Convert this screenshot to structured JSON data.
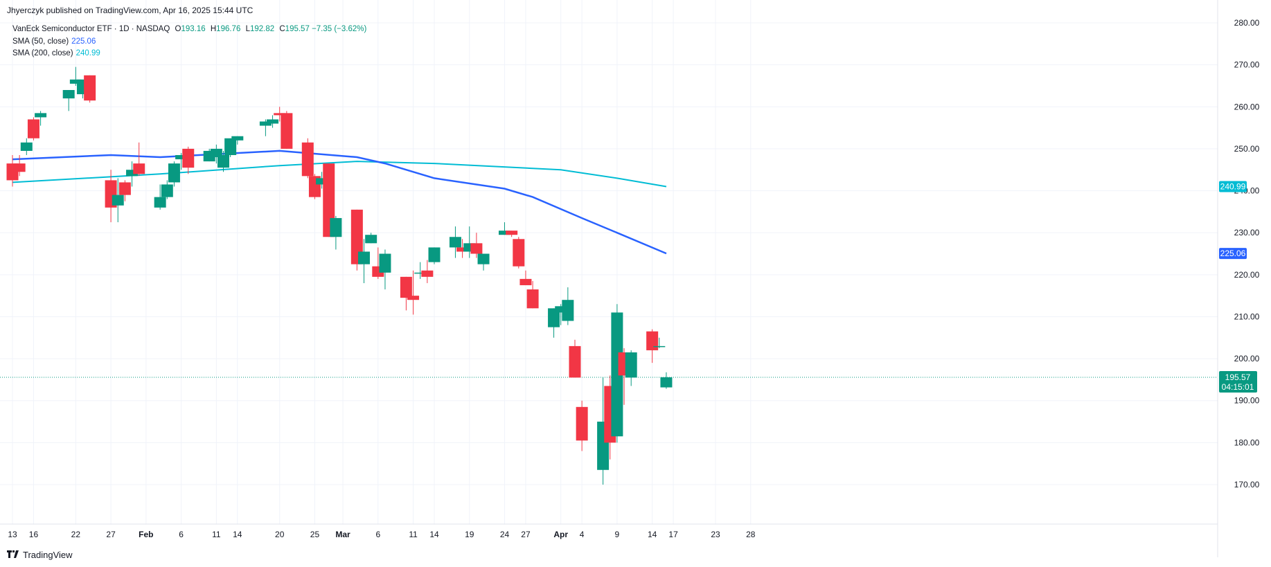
{
  "header": {
    "published": "Jhyerczyk published on TradingView.com, Apr 16, 2025 15:44 UTC"
  },
  "legend": {
    "instrument": "VanEck Semiconductor ETF · 1D · NASDAQ",
    "o_label": "O",
    "o_value": "193.16",
    "h_label": "H",
    "h_value": "196.76",
    "l_label": "L",
    "l_value": "192.82",
    "c_label": "C",
    "c_value": "195.57",
    "change": "−7.35 (−3.62%)",
    "sma50_label": "SMA (50, close)",
    "sma50_value": "225.06",
    "sma200_label": "SMA (200, close)",
    "sma200_value": "240.99"
  },
  "footer": {
    "brand": "TradingView"
  },
  "colors": {
    "up": "#089981",
    "down": "#F23645",
    "sma50": "#2962FF",
    "sma200": "#00BCD4",
    "grid": "#F0F3FA",
    "price_line": "#089981"
  },
  "chart_data": {
    "type": "candlestick",
    "yrange": [
      165,
      280
    ],
    "y_ticks": [
      170,
      180,
      190,
      200,
      210,
      220,
      230,
      240,
      250,
      260,
      270,
      280
    ],
    "x_tick_labels": [
      "13",
      "16",
      "22",
      "27",
      "Feb",
      "6",
      "11",
      "14",
      "20",
      "25",
      "Mar",
      "6",
      "11",
      "14",
      "19",
      "24",
      "27",
      "Apr",
      "4",
      "9",
      "14",
      "17",
      "23",
      "28"
    ],
    "candles": [
      [
        "2025-01-13",
        246.5,
        248.5,
        241.0,
        242.5
      ],
      [
        "2025-01-14",
        246.5,
        248.5,
        243.5,
        244.5
      ],
      [
        "2025-01-15",
        249.5,
        252.5,
        248.5,
        251.5
      ],
      [
        "2025-01-16",
        257.0,
        257.5,
        252.0,
        252.5
      ],
      [
        "2025-01-17",
        257.5,
        259.0,
        255.5,
        258.5
      ],
      [
        "2025-01-21",
        262.0,
        264.0,
        259.0,
        264.0
      ],
      [
        "2025-01-22",
        265.5,
        269.5,
        265.0,
        266.5
      ],
      [
        "2025-01-23",
        263.0,
        266.5,
        262.0,
        266.5
      ],
      [
        "2025-01-24",
        267.5,
        267.5,
        261.0,
        261.5
      ],
      [
        "2025-01-27",
        242.5,
        245.0,
        232.5,
        236.0
      ],
      [
        "2025-01-28",
        236.5,
        243.0,
        232.5,
        239.0
      ],
      [
        "2025-01-29",
        242.0,
        242.5,
        237.5,
        239.0
      ],
      [
        "2025-01-30",
        243.5,
        247.0,
        241.0,
        245.0
      ],
      [
        "2025-01-31",
        246.5,
        251.5,
        243.5,
        244.0
      ],
      [
        "2025-02-03",
        236.0,
        241.5,
        235.5,
        238.5
      ],
      [
        "2025-02-04",
        238.5,
        242.5,
        238.0,
        241.5
      ],
      [
        "2025-02-05",
        242.0,
        247.0,
        241.0,
        246.5
      ],
      [
        "2025-02-06",
        247.5,
        249.0,
        245.0,
        248.5
      ],
      [
        "2025-02-07",
        250.0,
        250.5,
        244.0,
        245.5
      ],
      [
        "2025-02-10",
        247.0,
        250.0,
        247.0,
        249.5
      ],
      [
        "2025-02-11",
        248.0,
        251.0,
        246.5,
        250.0
      ],
      [
        "2025-02-12",
        245.5,
        249.5,
        244.5,
        248.5
      ],
      [
        "2025-02-13",
        248.5,
        252.5,
        248.0,
        252.5
      ],
      [
        "2025-02-14",
        252.0,
        253.0,
        251.0,
        253.0
      ],
      [
        "2025-02-18",
        255.5,
        257.0,
        253.0,
        256.5
      ],
      [
        "2025-02-19",
        256.0,
        258.0,
        255.0,
        257.0
      ],
      [
        "2025-02-20",
        258.5,
        260.0,
        256.5,
        258.0
      ],
      [
        "2025-02-21",
        258.5,
        259.0,
        250.0,
        250.0
      ],
      [
        "2025-02-24",
        251.5,
        252.5,
        243.0,
        243.5
      ],
      [
        "2025-02-25",
        243.5,
        244.0,
        238.0,
        238.5
      ],
      [
        "2025-02-26",
        241.5,
        244.5,
        240.5,
        243.0
      ],
      [
        "2025-02-27",
        246.5,
        246.5,
        229.0,
        229.0
      ],
      [
        "2025-02-28",
        229.0,
        234.0,
        226.0,
        233.5
      ],
      [
        "2025-03-03",
        235.5,
        235.5,
        221.0,
        222.5
      ],
      [
        "2025-03-04",
        222.5,
        228.5,
        218.0,
        225.5
      ],
      [
        "2025-03-05",
        227.5,
        230.0,
        227.5,
        229.5
      ],
      [
        "2025-03-06",
        222.0,
        226.5,
        219.0,
        219.5
      ],
      [
        "2025-03-07",
        220.5,
        226.0,
        216.5,
        225.0
      ],
      [
        "2025-03-10",
        219.5,
        219.5,
        211.5,
        214.5
      ],
      [
        "2025-03-11",
        215.0,
        221.0,
        210.5,
        214.0
      ],
      [
        "2025-03-12",
        220.5,
        223.0,
        219.0,
        220.5
      ],
      [
        "2025-03-13",
        221.0,
        223.5,
        218.0,
        219.5
      ],
      [
        "2025-03-14",
        223.0,
        226.5,
        222.5,
        226.5
      ],
      [
        "2025-03-17",
        226.5,
        231.5,
        224.0,
        229.0
      ],
      [
        "2025-03-18",
        226.5,
        228.5,
        224.0,
        225.5
      ],
      [
        "2025-03-19",
        225.5,
        231.5,
        224.0,
        227.5
      ],
      [
        "2025-03-20",
        227.5,
        230.0,
        224.0,
        225.0
      ],
      [
        "2025-03-21",
        222.5,
        225.0,
        221.0,
        225.0
      ],
      [
        "2025-03-24",
        229.5,
        232.5,
        229.5,
        230.5
      ],
      [
        "2025-03-25",
        230.5,
        230.5,
        229.0,
        229.5
      ],
      [
        "2025-03-26",
        228.5,
        229.0,
        221.5,
        222.0
      ],
      [
        "2025-03-27",
        219.0,
        221.0,
        217.5,
        217.5
      ],
      [
        "2025-03-28",
        216.5,
        218.5,
        212.0,
        212.0
      ],
      [
        "2025-03-31",
        207.5,
        212.0,
        205.0,
        212.0
      ],
      [
        "2025-04-01",
        211.0,
        213.0,
        208.0,
        212.5
      ],
      [
        "2025-04-02",
        209.0,
        217.0,
        208.0,
        214.0
      ],
      [
        "2025-04-03",
        203.0,
        204.5,
        195.5,
        195.5
      ],
      [
        "2025-04-04",
        188.5,
        190.0,
        178.0,
        180.5
      ],
      [
        "2025-04-07",
        173.5,
        195.5,
        170.0,
        185.0
      ],
      [
        "2025-04-08",
        193.5,
        196.0,
        176.0,
        180.0
      ],
      [
        "2025-04-09",
        181.5,
        213.0,
        180.0,
        211.0
      ],
      [
        "2025-04-10",
        201.5,
        202.5,
        189.0,
        196.0
      ],
      [
        "2025-04-11",
        195.5,
        202.0,
        193.5,
        201.5
      ],
      [
        "2025-04-14",
        206.5,
        207.0,
        199.0,
        202.0
      ],
      [
        "2025-04-15",
        203.0,
        205.0,
        202.5,
        203.0
      ],
      [
        "2025-04-16",
        193.16,
        196.76,
        192.82,
        195.57
      ]
    ],
    "sma50": {
      "name": "SMA (50, close)",
      "points": [
        [
          "2025-01-13",
          247.5
        ],
        [
          "2025-01-27",
          248.5
        ],
        [
          "2025-02-03",
          248.0
        ],
        [
          "2025-02-20",
          249.5
        ],
        [
          "2025-03-03",
          248.0
        ],
        [
          "2025-03-07",
          246.5
        ],
        [
          "2025-03-14",
          243.0
        ],
        [
          "2025-03-24",
          240.5
        ],
        [
          "2025-03-28",
          238.5
        ],
        [
          "2025-04-04",
          233.5
        ],
        [
          "2025-04-09",
          230.0
        ],
        [
          "2025-04-16",
          225.06
        ]
      ]
    },
    "sma200": {
      "name": "SMA (200, close)",
      "points": [
        [
          "2025-01-13",
          242.0
        ],
        [
          "2025-02-03",
          244.0
        ],
        [
          "2025-02-20",
          246.0
        ],
        [
          "2025-03-03",
          247.0
        ],
        [
          "2025-03-14",
          246.5
        ],
        [
          "2025-04-01",
          245.0
        ],
        [
          "2025-04-09",
          243.0
        ],
        [
          "2025-04-16",
          240.99
        ]
      ]
    },
    "last_price": "195.57",
    "countdown": "04:15:01"
  }
}
